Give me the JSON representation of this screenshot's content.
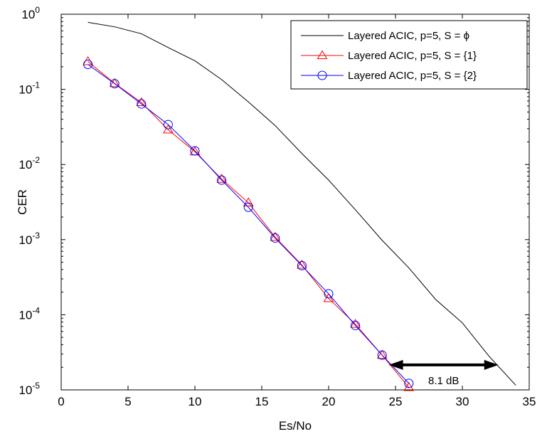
{
  "chart_data": {
    "type": "line",
    "xlabel": "Es/No",
    "ylabel": "CER",
    "xlim": [
      0,
      35
    ],
    "ylim": [
      1e-05,
      1
    ],
    "yscale": "log",
    "grid": false,
    "legend_position": "top-right",
    "xticks": [
      "0",
      "5",
      "10",
      "15",
      "20",
      "25",
      "30",
      "35"
    ],
    "xtick_values": [
      0,
      5,
      10,
      15,
      20,
      25,
      30,
      35
    ],
    "yticks": [
      {
        "base": "10",
        "exp": "0",
        "value": 1
      },
      {
        "base": "10",
        "exp": "-1",
        "value": 0.1
      },
      {
        "base": "10",
        "exp": "-2",
        "value": 0.01
      },
      {
        "base": "10",
        "exp": "-3",
        "value": 0.001
      },
      {
        "base": "10",
        "exp": "-4",
        "value": 0.0001
      },
      {
        "base": "10",
        "exp": "-5",
        "value": 1e-05
      }
    ],
    "series": [
      {
        "name": "Layered ACIC, p=5, S = ϕ",
        "color": "#000000",
        "marker": "none",
        "x": [
          2,
          4,
          6,
          8,
          10,
          12,
          14,
          16,
          18,
          20,
          22,
          24,
          26,
          28,
          30,
          32,
          34
        ],
        "y": [
          0.78,
          0.68,
          0.55,
          0.36,
          0.24,
          0.135,
          0.068,
          0.033,
          0.014,
          0.0062,
          0.0025,
          0.00098,
          0.00042,
          0.00016,
          7.8e-05,
          2.8e-05,
          1.15e-05
        ]
      },
      {
        "name": "Layered ACIC, p=5, S = {1}",
        "color": "#ff0000",
        "marker": "triangle",
        "x": [
          2,
          4,
          6,
          8,
          10,
          12,
          14,
          16,
          18,
          20,
          22,
          24,
          26
        ],
        "y": [
          0.235,
          0.12,
          0.067,
          0.029,
          0.0148,
          0.0064,
          0.0031,
          0.00108,
          0.00046,
          0.000165,
          7.5e-05,
          2.9e-05,
          1.08e-05
        ]
      },
      {
        "name": "Layered ACIC, p=5, S = {2}",
        "color": "#0000ff",
        "marker": "circle",
        "x": [
          2,
          4,
          6,
          8,
          10,
          12,
          14,
          16,
          18,
          20,
          22,
          24,
          26
        ],
        "y": [
          0.215,
          0.119,
          0.064,
          0.034,
          0.0152,
          0.0062,
          0.0027,
          0.00105,
          0.00045,
          0.00019,
          7.2e-05,
          2.9e-05,
          1.22e-05
        ]
      }
    ],
    "annotations": [
      {
        "text": "8.1 dB",
        "x_start": 24.5,
        "x_end": 32.7,
        "y": 2.15e-05
      }
    ]
  }
}
